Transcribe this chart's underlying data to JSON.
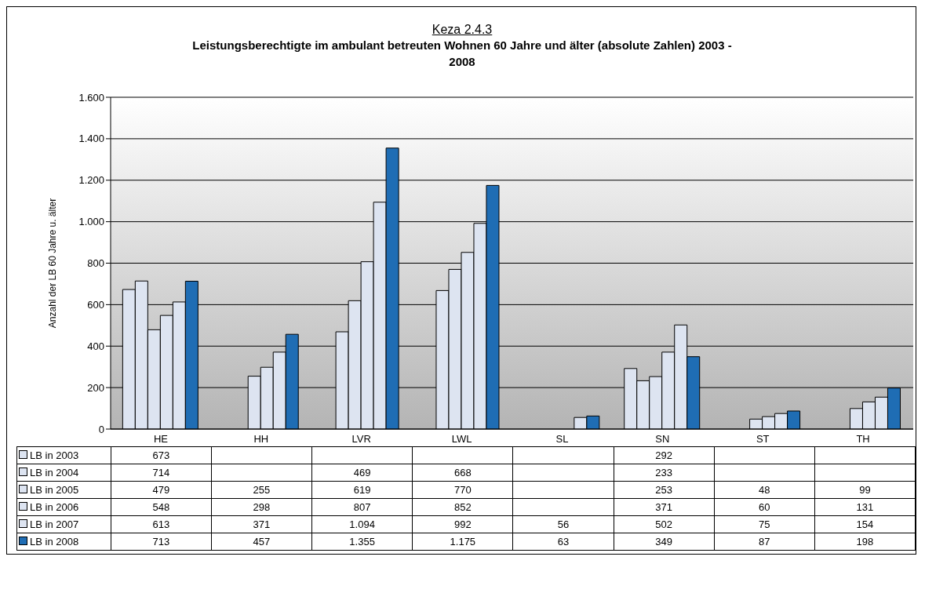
{
  "chart_data": {
    "type": "bar",
    "title": "Keza 2.4.3",
    "subtitle": "Leistungsberechtigte im ambulant betreuten Wohnen 60 Jahre und älter (absolute Zahlen) 2003 - 2008",
    "ylabel": "Anzahl der LB 60 Jahre u. älter",
    "categories": [
      "HE",
      "HH",
      "LVR",
      "LWL",
      "SL",
      "SN",
      "ST",
      "TH"
    ],
    "series": [
      {
        "name": "LB in 2003",
        "color": "#dde4f1",
        "values": [
          673,
          null,
          null,
          null,
          null,
          292,
          null,
          null
        ],
        "value_labels": [
          "673",
          null,
          null,
          null,
          null,
          "292",
          null,
          null
        ]
      },
      {
        "name": "LB in 2004",
        "color": "#dde4f1",
        "values": [
          714,
          null,
          469,
          668,
          null,
          233,
          null,
          null
        ],
        "value_labels": [
          "714",
          null,
          "469",
          "668",
          null,
          "233",
          null,
          null
        ]
      },
      {
        "name": "LB in 2005",
        "color": "#dde4f1",
        "values": [
          479,
          255,
          619,
          770,
          null,
          253,
          48,
          99
        ],
        "value_labels": [
          "479",
          "255",
          "619",
          "770",
          null,
          "253",
          "48",
          "99"
        ]
      },
      {
        "name": "LB in 2006",
        "color": "#dde4f1",
        "values": [
          548,
          298,
          807,
          852,
          null,
          371,
          60,
          131
        ],
        "value_labels": [
          "548",
          "298",
          "807",
          "852",
          null,
          "371",
          "60",
          "131"
        ]
      },
      {
        "name": "LB in 2007",
        "color": "#dde4f1",
        "values": [
          613,
          371,
          1094,
          992,
          56,
          502,
          75,
          154
        ],
        "value_labels": [
          "613",
          "371",
          "1.094",
          "992",
          "56",
          "502",
          "75",
          "154"
        ]
      },
      {
        "name": "LB in 2008",
        "color": "#1f6db4",
        "values": [
          713,
          457,
          1355,
          1175,
          63,
          349,
          87,
          198
        ],
        "value_labels": [
          "713",
          "457",
          "1.355",
          "1.175",
          "63",
          "349",
          "87",
          "198"
        ]
      }
    ],
    "ylim": [
      0,
      1600
    ],
    "yticks": [
      0,
      200,
      400,
      600,
      800,
      {
        "value": 1000,
        "label": "1.000"
      },
      {
        "value": 1200,
        "label": "1.200"
      },
      {
        "value": 1400,
        "label": "1.400"
      },
      {
        "value": 1600,
        "label": "1.600"
      }
    ],
    "grid": "y",
    "legend": "bottom"
  }
}
